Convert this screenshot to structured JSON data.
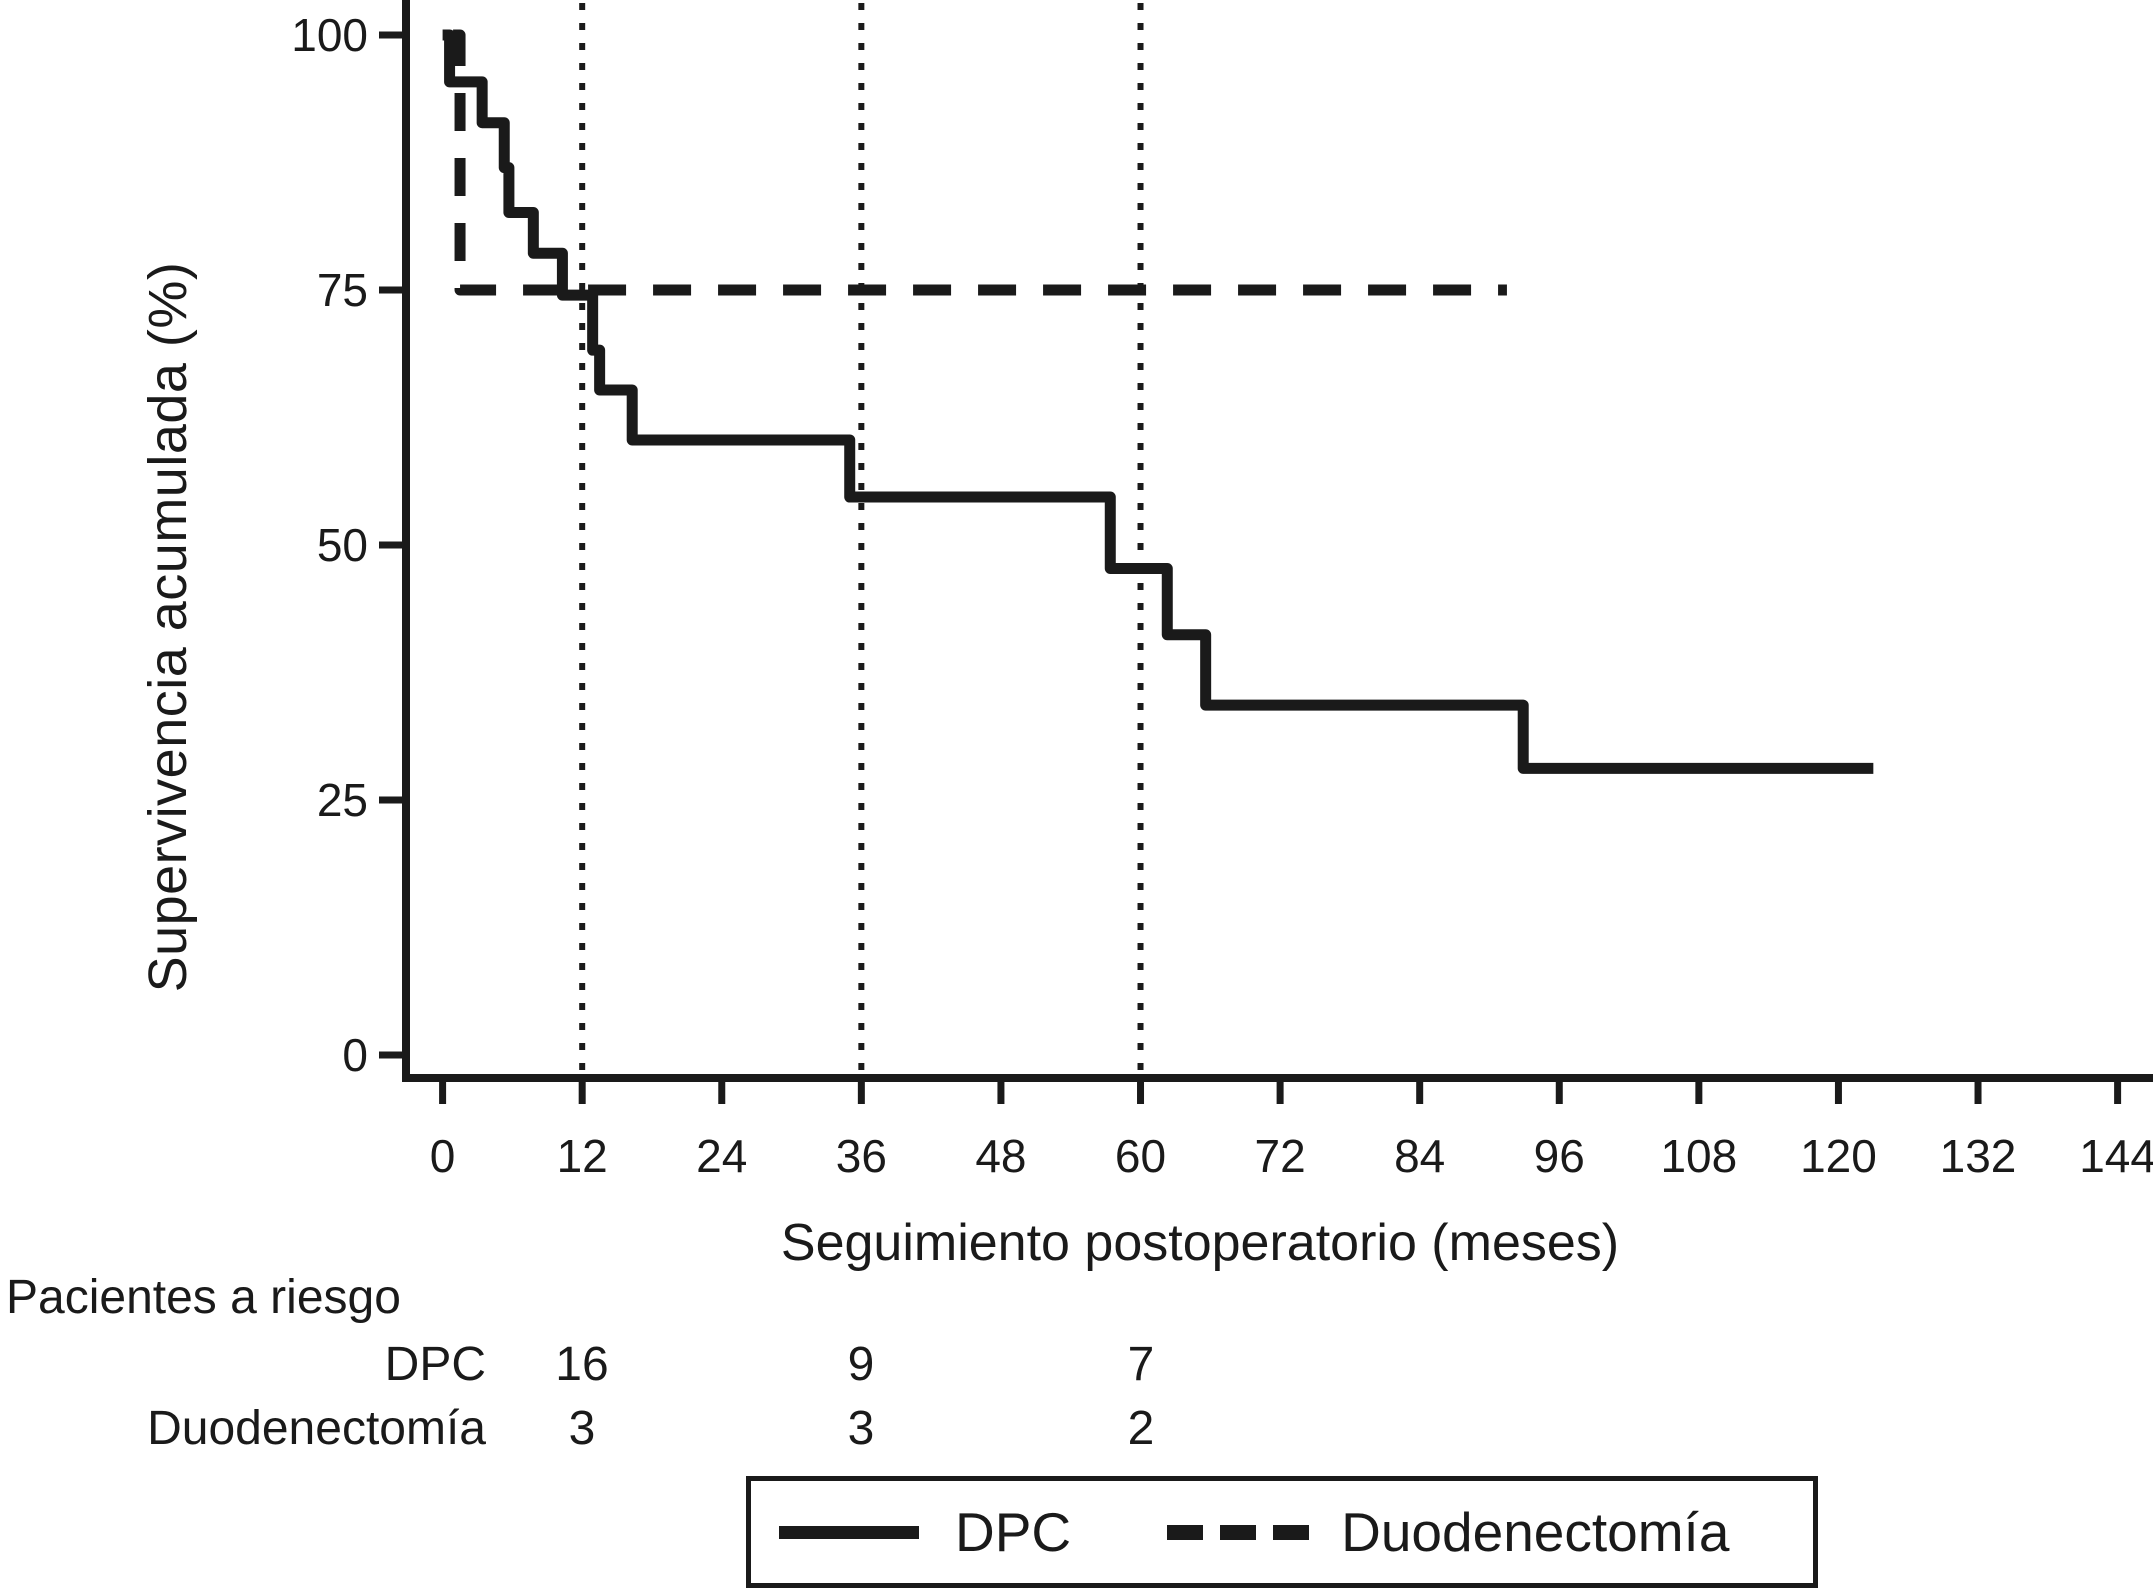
{
  "chart_data": {
    "type": "line",
    "subtype": "kaplan-meier-step",
    "title": "",
    "xlabel": "Seguimiento postoperatorio (meses)",
    "ylabel": "Supervivencia acumulada (%)",
    "x_ticks": [
      0,
      12,
      24,
      36,
      48,
      60,
      72,
      84,
      96,
      108,
      120,
      132,
      144
    ],
    "y_ticks": [
      100,
      75,
      50,
      25,
      0
    ],
    "xlim": [
      0,
      147
    ],
    "ylim": [
      0,
      105
    ],
    "grid": "vertical dotted reference lines at risk-assessment times",
    "risk_time_markers": [
      12,
      36,
      60
    ],
    "legend_position": "bottom",
    "series": [
      {
        "name": "DPC",
        "line_style": "solid",
        "steps": [
          [
            0,
            100
          ],
          [
            0.6,
            95.4
          ],
          [
            3.4,
            91.4
          ],
          [
            5.3,
            87.0
          ],
          [
            5.7,
            82.6
          ],
          [
            7.8,
            78.6
          ],
          [
            10.3,
            74.5
          ],
          [
            12.9,
            69.1
          ],
          [
            13.5,
            65.2
          ],
          [
            16.3,
            60.3
          ],
          [
            35,
            54.7
          ],
          [
            57.4,
            47.7
          ],
          [
            62.3,
            41.2
          ],
          [
            65.6,
            34.3
          ],
          [
            92.9,
            28.1
          ]
        ],
        "end_time": 123
      },
      {
        "name": "Duodenectomía",
        "line_style": "dashed",
        "steps": [
          [
            0.9,
            100
          ],
          [
            1.5,
            75
          ]
        ],
        "end_time": 91.5
      }
    ]
  },
  "risk_table": {
    "title": "Pacientes a riesgo",
    "columns_months": [
      12,
      36,
      60
    ],
    "rows": [
      {
        "label": "DPC",
        "values": [
          "16",
          "9",
          "7"
        ]
      },
      {
        "label": "Duodenectomía",
        "values": [
          "3",
          "3",
          "2"
        ]
      }
    ]
  },
  "legend": {
    "items": [
      {
        "label": "DPC",
        "style": "solid"
      },
      {
        "label": "Duodenectomía",
        "style": "dashed"
      }
    ]
  },
  "colors": {
    "ink": "#1a1a1a",
    "background": "#ffffff"
  }
}
